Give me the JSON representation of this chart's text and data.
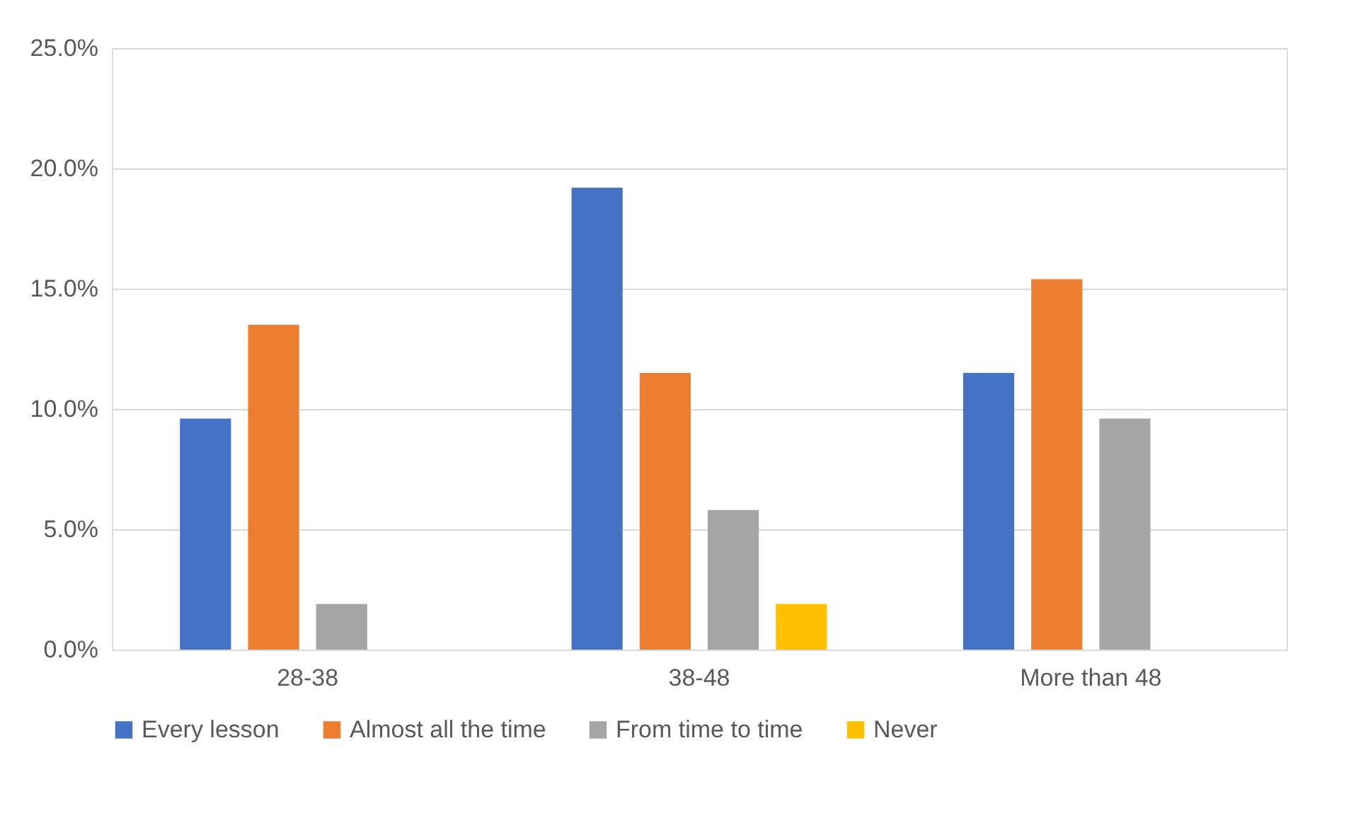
{
  "chart_data": {
    "type": "bar",
    "categories": [
      "28-38",
      "38-48",
      "More than 48"
    ],
    "series": [
      {
        "name": "Every lesson",
        "color": "#4472c4",
        "values": [
          9.6,
          19.2,
          11.5
        ]
      },
      {
        "name": "Almost all the time",
        "color": "#ed7d31",
        "values": [
          13.5,
          11.5,
          15.4
        ]
      },
      {
        "name": "From time to time",
        "color": "#a5a5a5",
        "values": [
          1.9,
          5.8,
          9.6
        ]
      },
      {
        "name": "Never",
        "color": "#ffc000",
        "values": [
          null,
          1.9,
          null
        ]
      }
    ],
    "ylim": [
      0,
      25
    ],
    "yticks": [
      {
        "value": 0,
        "label": "0.0%"
      },
      {
        "value": 5,
        "label": "5.0%"
      },
      {
        "value": 10,
        "label": "10.0%"
      },
      {
        "value": 15,
        "label": "15.0%"
      },
      {
        "value": 20,
        "label": "20.0%"
      },
      {
        "value": 25,
        "label": "25.0%"
      }
    ],
    "grid": "y",
    "legend": "bottom"
  }
}
